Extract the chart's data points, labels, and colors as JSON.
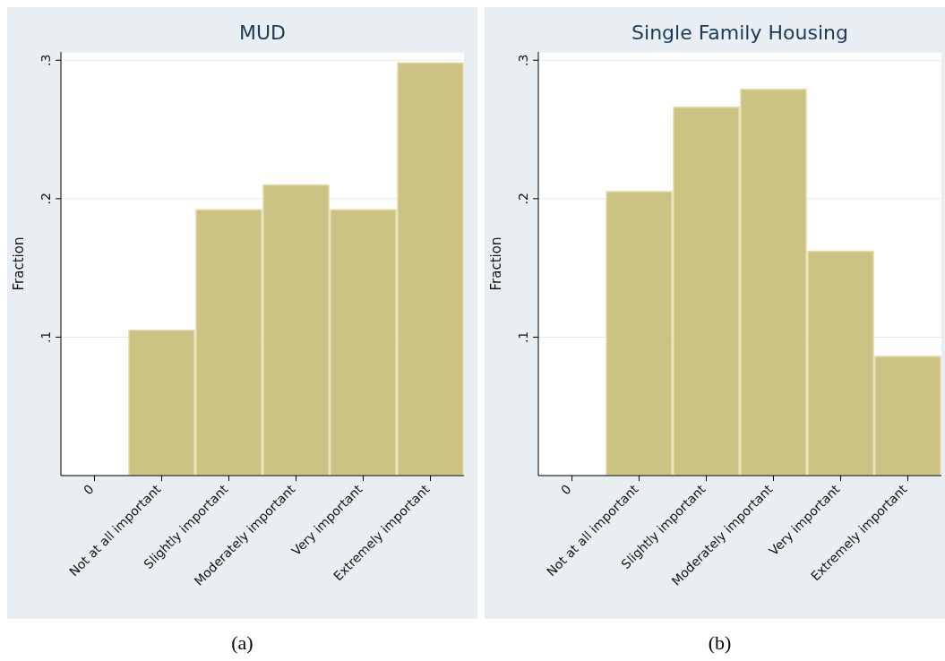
{
  "chart_data": [
    {
      "type": "bar",
      "title": "MUD",
      "ylabel": "Fraction",
      "categories": [
        "0",
        "Not at all important",
        "Slightly important",
        "Moderately important",
        "Very important",
        "Extremely important"
      ],
      "values": [
        null,
        0.105,
        0.192,
        0.21,
        0.192,
        0.298
      ],
      "color": "#cbc283",
      "ylim": [
        0,
        0.306
      ],
      "yticks": [
        {
          "value": 0.1,
          "label": ".1"
        },
        {
          "value": 0.2,
          "label": ".2"
        },
        {
          "value": 0.3,
          "label": ".3"
        }
      ],
      "grid": "y",
      "annotations": [
        "(a)"
      ]
    },
    {
      "type": "bar",
      "title": "Single Family Housing",
      "ylabel": "Fraction",
      "categories": [
        "0",
        "Not at all important",
        "Slightly important",
        "Moderately important",
        "Very important",
        "Extremely important"
      ],
      "values": [
        null,
        0.205,
        0.266,
        0.279,
        0.162,
        0.086
      ],
      "color": "#cbc283",
      "ylim": [
        0,
        0.306
      ],
      "yticks": [
        {
          "value": 0.1,
          "label": ".1"
        },
        {
          "value": 0.2,
          "label": ".2"
        },
        {
          "value": 0.3,
          "label": ".3"
        }
      ],
      "grid": "y",
      "annotations": [
        "(b)"
      ]
    }
  ]
}
